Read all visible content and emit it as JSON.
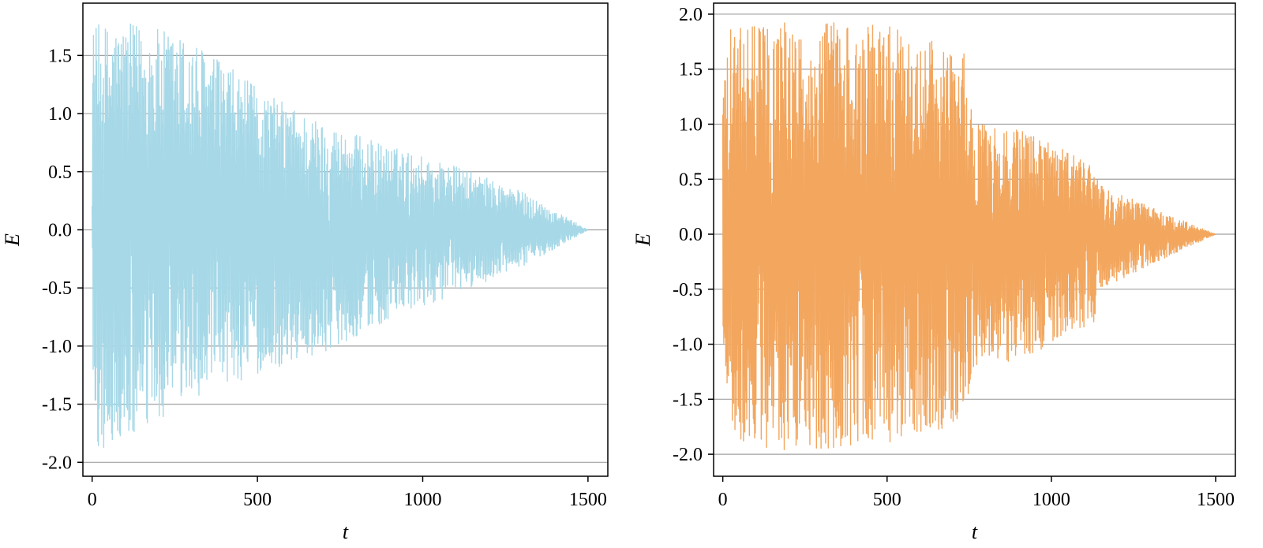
{
  "chart_data": [
    {
      "type": "line",
      "xlabel": "t",
      "ylabel": "E",
      "xlim": [
        -28,
        1560
      ],
      "ylim": [
        -2.12,
        1.95
      ],
      "xticks": [
        0,
        500,
        1000,
        1500
      ],
      "xtick_labels": [
        "0",
        "500",
        "1000",
        "1500"
      ],
      "yticks": [
        1.5,
        1.0,
        0.5,
        0.0,
        -0.5,
        -1.0,
        -1.5,
        -2.0
      ],
      "ytick_labels": [
        "1.5",
        "1.0",
        "0.5",
        "0.0",
        "-0.5",
        "-1.0",
        "-1.5",
        "-2.0"
      ],
      "grid": "horizontal",
      "legend": "none",
      "series": [
        {
          "color": "#a6d8e7",
          "signal": "damped oscillation",
          "envelope_t": [
            0,
            20,
            150,
            300,
            500,
            700,
            900,
            1100,
            1300,
            1500
          ],
          "envelope_upper": [
            1.76,
            1.77,
            1.77,
            1.65,
            1.22,
            0.92,
            0.72,
            0.55,
            0.33,
            0.0
          ],
          "envelope_lower": [
            -1.47,
            -1.93,
            -1.78,
            -1.45,
            -1.25,
            -1.05,
            -0.78,
            -0.55,
            -0.32,
            0.0
          ]
        }
      ]
    },
    {
      "type": "line",
      "xlabel": "t",
      "ylabel": "E",
      "xlim": [
        -28,
        1560
      ],
      "ylim": [
        -2.2,
        2.1
      ],
      "xticks": [
        0,
        500,
        1000,
        1500
      ],
      "xtick_labels": [
        "0",
        "500",
        "1000",
        "1500"
      ],
      "yticks": [
        2.0,
        1.5,
        1.0,
        0.5,
        0.0,
        -0.5,
        -1.0,
        -1.5,
        -2.0
      ],
      "ytick_labels": [
        "2.0",
        "1.5",
        "1.0",
        "0.5",
        "0.0",
        "-0.5",
        "-1.0",
        "-1.5",
        "-2.0"
      ],
      "grid": "horizontal",
      "legend": "none",
      "series": [
        {
          "color": "#f2a65e",
          "signal": "damped oscillation",
          "envelope_t": [
            0,
            40,
            300,
            500,
            740,
            760,
            900,
            1100,
            1130,
            1150,
            1300,
            1500
          ],
          "envelope_upper": [
            1.8,
            1.92,
            1.95,
            1.9,
            1.65,
            1.02,
            0.98,
            0.67,
            0.65,
            0.45,
            0.25,
            0.0
          ],
          "envelope_lower": [
            -1.05,
            -1.98,
            -1.95,
            -1.9,
            -1.75,
            -1.25,
            -1.15,
            -0.85,
            -0.8,
            -0.5,
            -0.28,
            0.0
          ]
        }
      ]
    }
  ]
}
